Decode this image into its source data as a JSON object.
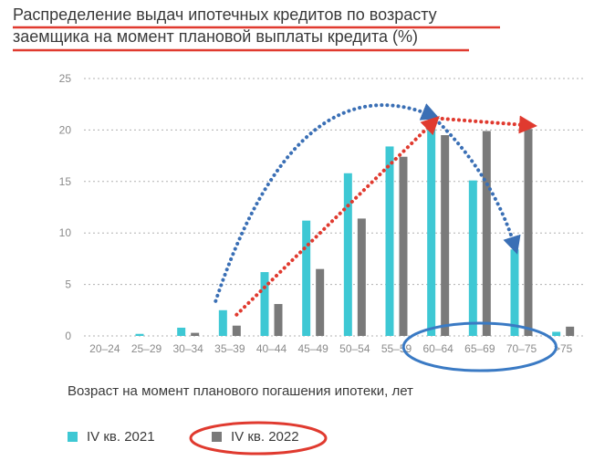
{
  "title": {
    "line1": "Распределение выдач ипотечных кредитов по возрасту",
    "line2": "заемщика на момент плановой выплаты кредита (%)"
  },
  "chart_data": {
    "type": "bar",
    "title": "Распределение выдач ипотечных кредитов по возрасту заемщика на момент плановой выплаты кредита (%)",
    "xlabel": "Возраст на момент планового погашения ипотеки, лет",
    "ylabel": "",
    "ylim": [
      0,
      25
    ],
    "yticks": [
      0,
      5,
      10,
      15,
      20,
      25
    ],
    "grid": true,
    "legend_position": "bottom-left",
    "categories": [
      "20–24",
      "25–29",
      "30–34",
      "35–39",
      "40–44",
      "45–49",
      "50–54",
      "55–59",
      "60–64",
      "65–69",
      "70–75",
      ">75"
    ],
    "series": [
      {
        "name": "IV кв. 2021",
        "color": "#3ec8d4",
        "values": [
          0,
          0.2,
          0.8,
          2.5,
          6.2,
          11.2,
          15.8,
          18.4,
          20.9,
          15.1,
          8.4,
          0.4
        ]
      },
      {
        "name": "IV кв. 2022",
        "color": "#7a7a7a",
        "values": [
          0,
          0,
          0.3,
          1.0,
          3.1,
          6.5,
          11.4,
          17.4,
          19.5,
          19.9,
          20.1,
          0.9
        ]
      }
    ],
    "annotations": [
      {
        "type": "dotted-arrow",
        "color": "#3a6fb5",
        "description": "trend of IV кв. 2021 rising to peak at 60–64 then falling to 70–75"
      },
      {
        "type": "dotted-arrow",
        "color": "#e03a2f",
        "description": "trend of IV кв. 2022 rising to 60–64 then flat to 70–75"
      },
      {
        "type": "ellipse",
        "color": "#3a7ac4",
        "description": "highlight of 60–64, 65–69, 70–75 categories"
      },
      {
        "type": "ellipse",
        "color": "#e03a2f",
        "description": "highlight of IV кв. 2022 legend entry"
      },
      {
        "type": "underline",
        "color": "#e03a2f",
        "description": "title underline"
      }
    ]
  },
  "legend": {
    "item1": "IV кв. 2021",
    "item2": "IV кв. 2022"
  },
  "colors": {
    "series1": "#3ec8d4",
    "series2": "#7a7a7a",
    "grid": "#b0b0b0",
    "axis_text": "#8a8a8a",
    "blue_annotation": "#3a6fb5",
    "red_annotation": "#e03a2f"
  }
}
